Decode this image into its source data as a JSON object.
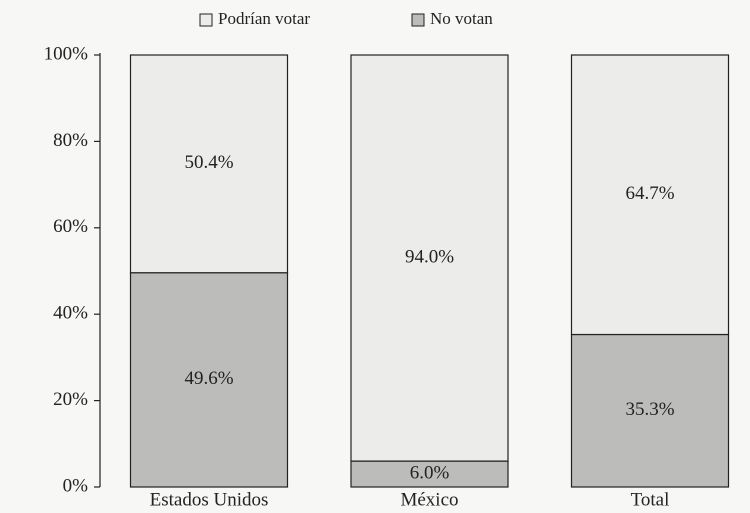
{
  "chart_data": {
    "type": "stacked_bar",
    "categories": [
      "Estados Unidos",
      "México",
      "Total"
    ],
    "series": [
      {
        "name": "Podrían votar",
        "color": "#ececea",
        "values": [
          50.4,
          94.0,
          64.7
        ],
        "value_labels": [
          "50.4%",
          "94.0%",
          "64.7%"
        ]
      },
      {
        "name": "No votan",
        "color": "#bcbcba",
        "values": [
          49.6,
          6.0,
          35.3
        ],
        "value_labels": [
          "49.6%",
          "6.0%",
          "35.3%"
        ]
      }
    ],
    "ylim": [
      0,
      100
    ],
    "yticks": [
      {
        "value": 0,
        "label": "0%"
      },
      {
        "value": 20,
        "label": "20%"
      },
      {
        "value": 40,
        "label": "40%"
      },
      {
        "value": 60,
        "label": "60%"
      },
      {
        "value": 80,
        "label": "80%"
      },
      {
        "value": 100,
        "label": "100%"
      }
    ],
    "legend": "top"
  }
}
